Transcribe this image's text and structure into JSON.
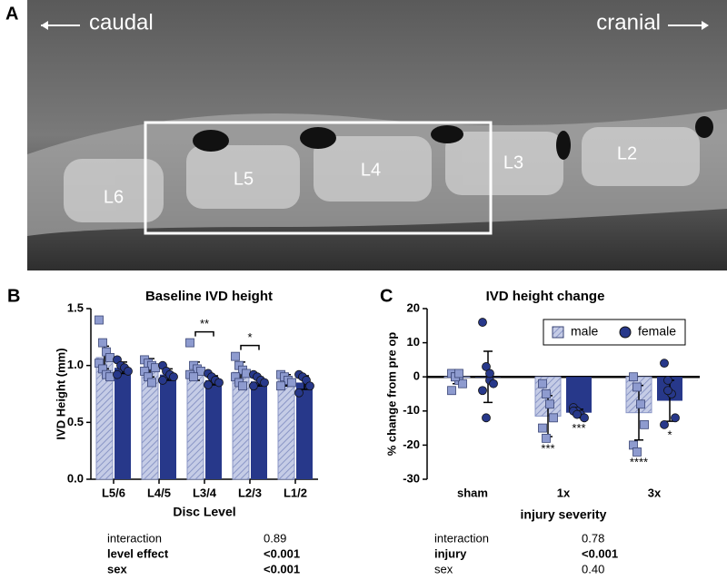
{
  "panel_a": {
    "label": "A",
    "caudal": "caudal",
    "cranial": "cranial",
    "vertebrae": [
      "L6",
      "L5",
      "L4",
      "L3",
      "L2"
    ]
  },
  "chart_data": [
    {
      "type": "bar",
      "panel": "B",
      "title": "Baseline IVD height",
      "y_label": "IVD Height (mm)",
      "x_label": "Disc Level",
      "categories": [
        "L5/6",
        "L4/5",
        "L3/4",
        "L2/3",
        "L1/2"
      ],
      "ylim": [
        0,
        1.5
      ],
      "yticks": [
        {
          "value": 0,
          "label": "0.0"
        },
        0.5,
        {
          "value": 1,
          "label": "1.0"
        },
        1.5
      ],
      "series": [
        {
          "color": "#a9b3d9",
          "hatch": true,
          "marker": "square",
          "values": [
            1.07,
            0.98,
            0.95,
            0.94,
            0.87
          ],
          "errors": [
            0.1,
            0.08,
            0.08,
            0.09,
            0.05
          ],
          "points": [
            [
              1.4,
              1.2,
              1.12,
              1.07,
              1.02,
              0.97,
              0.92,
              0.9
            ],
            [
              1.05,
              1.02,
              1.0,
              0.98,
              0.95,
              0.9,
              0.85
            ],
            [
              1.2,
              1.0,
              0.97,
              0.95,
              0.92,
              0.9
            ],
            [
              1.08,
              1.0,
              0.96,
              0.93,
              0.9,
              0.85,
              0.82
            ],
            [
              0.92,
              0.9,
              0.87,
              0.85,
              0.82
            ]
          ]
        },
        {
          "color": "#27388a",
          "hatch": false,
          "marker": "circle",
          "values": [
            0.98,
            0.92,
            0.87,
            0.86,
            0.85
          ],
          "errors": [
            0.05,
            0.05,
            0.04,
            0.04,
            0.06
          ],
          "points": [
            [
              1.05,
              1.0,
              0.98,
              0.95,
              0.92
            ],
            [
              1.0,
              0.95,
              0.92,
              0.9,
              0.87
            ],
            [
              0.93,
              0.9,
              0.87,
              0.85,
              0.83
            ],
            [
              0.92,
              0.9,
              0.87,
              0.85,
              0.82
            ],
            [
              0.92,
              0.9,
              0.87,
              0.82,
              0.76
            ]
          ]
        }
      ],
      "annotations": [
        {
          "text": "**",
          "category": "L3/4"
        },
        {
          "text": "*",
          "category": "L2/3"
        }
      ],
      "stats": {
        "rows": [
          [
            "interaction",
            "0.89"
          ],
          [
            "level effect",
            "<0.001"
          ],
          [
            "sex",
            "<0.001"
          ]
        ],
        "bold": [
          false,
          true,
          true
        ]
      }
    },
    {
      "type": "bar",
      "panel": "C",
      "title": "IVD height change",
      "y_label": "% change from pre op",
      "x_label": "injury severity",
      "categories": [
        "sham",
        "1x",
        "3x"
      ],
      "ylim": [
        -30,
        20
      ],
      "yticks": [
        -30,
        -20,
        -10,
        0,
        10,
        20
      ],
      "legend": "upper right",
      "series": [
        {
          "name": "male",
          "color": "#a9b3d9",
          "hatch": true,
          "marker": "square",
          "values": [
            0,
            -11.5,
            -10.5
          ],
          "errors": [
            2,
            6,
            8
          ],
          "points": [
            [
              1,
              0,
              -1,
              -2,
              -4,
              0,
              1
            ],
            [
              -2,
              -5,
              -8,
              -12,
              -15,
              -18
            ],
            [
              0,
              -3,
              -8,
              -14,
              -20,
              -22
            ]
          ],
          "significance": [
            null,
            "***",
            "****"
          ]
        },
        {
          "name": "female",
          "color": "#27388a",
          "hatch": false,
          "marker": "circle",
          "values": [
            0,
            -10.5,
            -7
          ],
          "errors": [
            7.5,
            1,
            6
          ],
          "points": [
            [
              16,
              3,
              -1,
              -2,
              -4,
              -12,
              1
            ],
            [
              -9,
              -10,
              -11,
              -12,
              -10,
              -11
            ],
            [
              4,
              -1,
              -5,
              -12,
              -14,
              -4
            ]
          ],
          "significance": [
            null,
            "***",
            "*"
          ]
        }
      ],
      "stats": {
        "rows": [
          [
            "interaction",
            "0.78"
          ],
          [
            "injury",
            "<0.001"
          ],
          [
            "sex",
            "0.40"
          ]
        ],
        "bold": [
          false,
          true,
          false
        ]
      }
    }
  ]
}
